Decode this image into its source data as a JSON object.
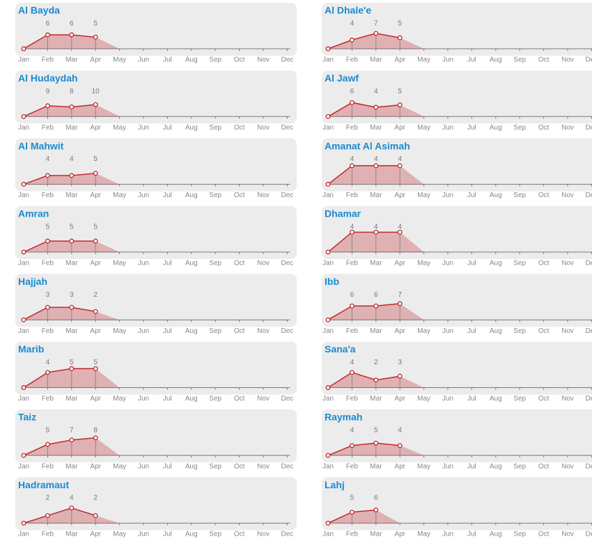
{
  "chart_data": [
    {
      "type": "line",
      "title": "Al Bayda",
      "categories": [
        "Jan",
        "Feb",
        "Mar",
        "Apr",
        "May",
        "Jun",
        "Jul",
        "Aug",
        "Sep",
        "Oct",
        "Nov",
        "Dec"
      ],
      "values": [
        0,
        6,
        6,
        5,
        null,
        null,
        null,
        null,
        null,
        null,
        null,
        null
      ],
      "ylim": [
        0,
        9
      ],
      "color": "#c0272d"
    },
    {
      "type": "line",
      "title": "Al Hudaydah",
      "categories": [
        "Jan",
        "Feb",
        "Mar",
        "Apr",
        "May",
        "Jun",
        "Jul",
        "Aug",
        "Sep",
        "Oct",
        "Nov",
        "Dec"
      ],
      "values": [
        0,
        9,
        8,
        10,
        null,
        null,
        null,
        null,
        null,
        null,
        null,
        null
      ],
      "ylim": [
        0,
        17.5
      ],
      "color": "#c0272d"
    },
    {
      "type": "line",
      "title": "Al Mahwit",
      "categories": [
        "Jan",
        "Feb",
        "Mar",
        "Apr",
        "May",
        "Jun",
        "Jul",
        "Aug",
        "Sep",
        "Oct",
        "Nov",
        "Dec"
      ],
      "values": [
        0,
        4,
        4,
        5,
        null,
        null,
        null,
        null,
        null,
        null,
        null,
        null
      ],
      "ylim": [
        0,
        9.5
      ],
      "color": "#c0272d"
    },
    {
      "type": "line",
      "title": "Amran",
      "categories": [
        "Jan",
        "Feb",
        "Mar",
        "Apr",
        "May",
        "Jun",
        "Jul",
        "Aug",
        "Sep",
        "Oct",
        "Nov",
        "Dec"
      ],
      "values": [
        0,
        5,
        5,
        5,
        null,
        null,
        null,
        null,
        null,
        null,
        null,
        null
      ],
      "ylim": [
        0,
        9.5
      ],
      "color": "#c0272d"
    },
    {
      "type": "line",
      "title": "Hajjah",
      "categories": [
        "Jan",
        "Feb",
        "Mar",
        "Apr",
        "May",
        "Jun",
        "Jul",
        "Aug",
        "Sep",
        "Oct",
        "Nov",
        "Dec"
      ],
      "values": [
        0,
        3,
        3,
        2,
        null,
        null,
        null,
        null,
        null,
        null,
        null,
        null
      ],
      "ylim": [
        0,
        5
      ],
      "color": "#c0272d"
    },
    {
      "type": "line",
      "title": "Marib",
      "categories": [
        "Jan",
        "Feb",
        "Mar",
        "Apr",
        "May",
        "Jun",
        "Jul",
        "Aug",
        "Sep",
        "Oct",
        "Nov",
        "Dec"
      ],
      "values": [
        0,
        4,
        5,
        5,
        null,
        null,
        null,
        null,
        null,
        null,
        null,
        null
      ],
      "ylim": [
        0,
        5.5
      ],
      "color": "#c0272d"
    },
    {
      "type": "line",
      "title": "Taiz",
      "categories": [
        "Jan",
        "Feb",
        "Mar",
        "Apr",
        "May",
        "Jun",
        "Jul",
        "Aug",
        "Sep",
        "Oct",
        "Nov",
        "Dec"
      ],
      "values": [
        0,
        5,
        7,
        8,
        null,
        null,
        null,
        null,
        null,
        null,
        null,
        null
      ],
      "ylim": [
        0,
        9.5
      ],
      "color": "#c0272d"
    },
    {
      "type": "line",
      "title": "Hadramaut",
      "categories": [
        "Jan",
        "Feb",
        "Mar",
        "Apr",
        "May",
        "Jun",
        "Jul",
        "Aug",
        "Sep",
        "Oct",
        "Nov",
        "Dec"
      ],
      "values": [
        0,
        2,
        4,
        2,
        null,
        null,
        null,
        null,
        null,
        null,
        null,
        null
      ],
      "ylim": [
        0,
        5.5
      ],
      "color": "#c0272d"
    },
    {
      "type": "line",
      "title": "Al Dhale'e",
      "categories": [
        "Jan",
        "Feb",
        "Mar",
        "Apr",
        "May",
        "Jun",
        "Jul",
        "Aug",
        "Sep",
        "Oct",
        "Nov",
        "Dec"
      ],
      "values": [
        0,
        4,
        7,
        5,
        null,
        null,
        null,
        null,
        null,
        null,
        null,
        null
      ],
      "ylim": [
        0,
        9.5
      ],
      "color": "#c0272d"
    },
    {
      "type": "line",
      "title": "Al Jawf",
      "categories": [
        "Jan",
        "Feb",
        "Mar",
        "Apr",
        "May",
        "Jun",
        "Jul",
        "Aug",
        "Sep",
        "Oct",
        "Nov",
        "Dec"
      ],
      "values": [
        0,
        6,
        4,
        5,
        null,
        null,
        null,
        null,
        null,
        null,
        null,
        null
      ],
      "ylim": [
        0,
        9
      ],
      "color": "#c0272d"
    },
    {
      "type": "line",
      "title": "Amanat Al Asimah",
      "categories": [
        "Jan",
        "Feb",
        "Mar",
        "Apr",
        "May",
        "Jun",
        "Jul",
        "Aug",
        "Sep",
        "Oct",
        "Nov",
        "Dec"
      ],
      "values": [
        0,
        4,
        4,
        4,
        null,
        null,
        null,
        null,
        null,
        null,
        null,
        null
      ],
      "ylim": [
        0,
        4.5
      ],
      "color": "#c0272d"
    },
    {
      "type": "line",
      "title": "Dhamar",
      "categories": [
        "Jan",
        "Feb",
        "Mar",
        "Apr",
        "May",
        "Jun",
        "Jul",
        "Aug",
        "Sep",
        "Oct",
        "Nov",
        "Dec"
      ],
      "values": [
        0,
        4,
        4,
        4,
        null,
        null,
        null,
        null,
        null,
        null,
        null,
        null
      ],
      "ylim": [
        0,
        4.2
      ],
      "color": "#c0272d"
    },
    {
      "type": "line",
      "title": "Ibb",
      "categories": [
        "Jan",
        "Feb",
        "Mar",
        "Apr",
        "May",
        "Jun",
        "Jul",
        "Aug",
        "Sep",
        "Oct",
        "Nov",
        "Dec"
      ],
      "values": [
        0,
        6,
        6,
        7,
        null,
        null,
        null,
        null,
        null,
        null,
        null,
        null
      ],
      "ylim": [
        0,
        9
      ],
      "color": "#c0272d"
    },
    {
      "type": "line",
      "title": "Sana'a",
      "categories": [
        "Jan",
        "Feb",
        "Mar",
        "Apr",
        "May",
        "Jun",
        "Jul",
        "Aug",
        "Sep",
        "Oct",
        "Nov",
        "Dec"
      ],
      "values": [
        0,
        4,
        2,
        3,
        null,
        null,
        null,
        null,
        null,
        null,
        null,
        null
      ],
      "ylim": [
        0,
        5.5
      ],
      "color": "#c0272d"
    },
    {
      "type": "line",
      "title": "Raymah",
      "categories": [
        "Jan",
        "Feb",
        "Mar",
        "Apr",
        "May",
        "Jun",
        "Jul",
        "Aug",
        "Sep",
        "Oct",
        "Nov",
        "Dec"
      ],
      "values": [
        0,
        4,
        5,
        4,
        null,
        null,
        null,
        null,
        null,
        null,
        null,
        null
      ],
      "ylim": [
        0,
        8.5
      ],
      "color": "#c0272d"
    },
    {
      "type": "line",
      "title": "Lahj",
      "categories": [
        "Jan",
        "Feb",
        "Mar",
        "Apr",
        "May",
        "Jun",
        "Jul",
        "Aug",
        "Sep",
        "Oct",
        "Nov",
        "Dec"
      ],
      "values": [
        0,
        5,
        6,
        null,
        null,
        null,
        null,
        null,
        null,
        null,
        null,
        null
      ],
      "ylim": [
        0,
        9.5
      ],
      "color": "#c0272d"
    }
  ]
}
